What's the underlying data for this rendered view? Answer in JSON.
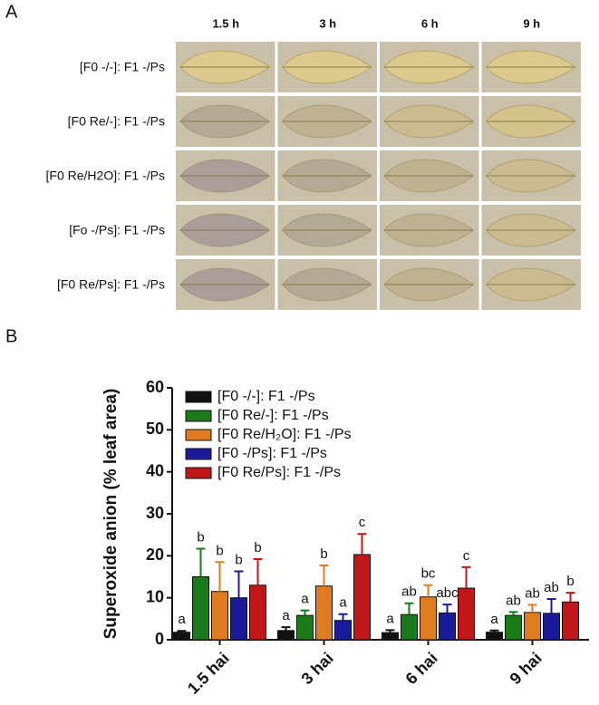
{
  "panel_a": {
    "label": "A",
    "columns": [
      "1.5 h",
      "3 h",
      "6 h",
      "9 h"
    ],
    "rows": [
      "[F0 -/-]: F1 -/Ps",
      "[F0 Re/-]: F1 -/Ps",
      "[F0 Re/H2O]: F1 -/Ps",
      "[Fo -/Ps]: F1 -/Ps",
      "[F0 Re/Ps]: F1 -/Ps"
    ]
  },
  "chart_data": {
    "type": "bar",
    "panel_label": "B",
    "y_label": "Superoxide anion (% leaf area)",
    "categories": [
      "1.5 hai",
      "3 hai",
      "6 hai",
      "9 hai"
    ],
    "ylim": [
      0,
      60
    ],
    "yticks": [
      0,
      10,
      20,
      30,
      40,
      50,
      60
    ],
    "series": [
      {
        "name": "[F0 -/-]: F1 -/Ps",
        "color": "#111111",
        "values": [
          1.8,
          2.2,
          1.7,
          1.8
        ],
        "errors": [
          0.3,
          0.8,
          0.6,
          0.4
        ],
        "significance": [
          "a",
          "a",
          "a",
          "a"
        ]
      },
      {
        "name": "[F0 Re/-]: F1 -/Ps",
        "color": "#1a7a1a",
        "values": [
          15,
          5.8,
          6,
          5.8
        ],
        "errors": [
          6.7,
          1.2,
          2.7,
          0.8
        ],
        "significance": [
          "b",
          "a",
          "ab",
          "ab"
        ]
      },
      {
        "name": "[F0 Re/H₂O]: F1 -/Ps",
        "color": "#e07b20",
        "values": [
          11.5,
          12.8,
          10.2,
          6.5
        ],
        "errors": [
          7,
          4.9,
          2.8,
          1.8
        ],
        "significance": [
          "b",
          "b",
          "bc",
          "ab"
        ]
      },
      {
        "name": "[F0 -/Ps]: F1 -/Ps",
        "color": "#1a1a9a",
        "values": [
          10,
          4.6,
          6.4,
          6.3
        ],
        "errors": [
          6.3,
          1.5,
          2,
          3.4
        ],
        "significance": [
          "b",
          "a",
          "abc",
          "ab"
        ]
      },
      {
        "name": "[F0 Re/Ps]: F1 -/Ps",
        "color": "#c01818",
        "values": [
          13,
          20.3,
          12.3,
          9
        ],
        "errors": [
          6.2,
          4.9,
          5,
          2.2
        ],
        "significance": [
          "b",
          "c",
          "c",
          "b"
        ]
      }
    ]
  }
}
